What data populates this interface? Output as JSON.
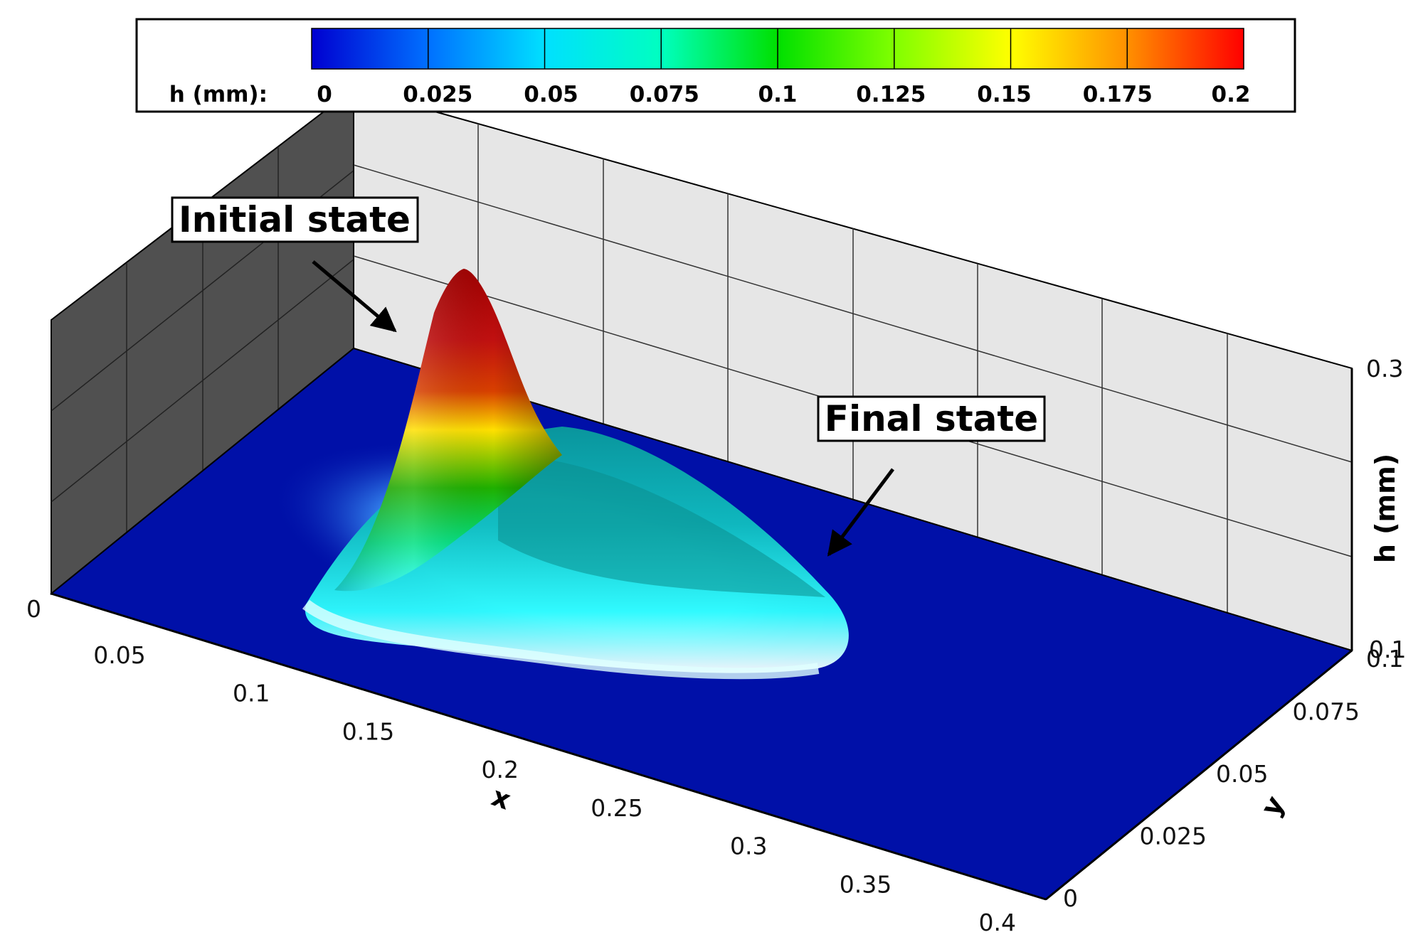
{
  "chart_data": {
    "type": "surface3d",
    "colorbar": {
      "label": "h (mm):",
      "min": 0,
      "max": 0.2,
      "ticks": [
        "0",
        "0.025",
        "0.05",
        "0.075",
        "0.1",
        "0.125",
        "0.15",
        "0.175",
        "0.2"
      ],
      "colors": [
        "#0000d0",
        "#0070ff",
        "#00e0ff",
        "#00ffc0",
        "#00e000",
        "#80ff00",
        "#ffff00",
        "#ff9000",
        "#ff0000"
      ]
    },
    "x_axis": {
      "label": "x",
      "range": [
        0,
        0.4
      ],
      "ticks": [
        "0.05",
        "0.1",
        "0.15",
        "0.2",
        "0.25",
        "0.3",
        "0.35",
        "0.4"
      ]
    },
    "y_axis": {
      "label": "y",
      "range": [
        0,
        0.1
      ],
      "ticks": [
        "0",
        "0.025",
        "0.05",
        "0.075",
        "0.1"
      ]
    },
    "z_axis": {
      "label": "h (mm)",
      "range": [
        0,
        0.3
      ],
      "ticks": [
        "0",
        "0.1",
        "0.3"
      ]
    },
    "annotations": [
      {
        "text": "Initial state",
        "target": "peak"
      },
      {
        "text": "Final state",
        "target": "spread-film"
      }
    ],
    "floor_color": "#0010a8",
    "grid": true
  }
}
